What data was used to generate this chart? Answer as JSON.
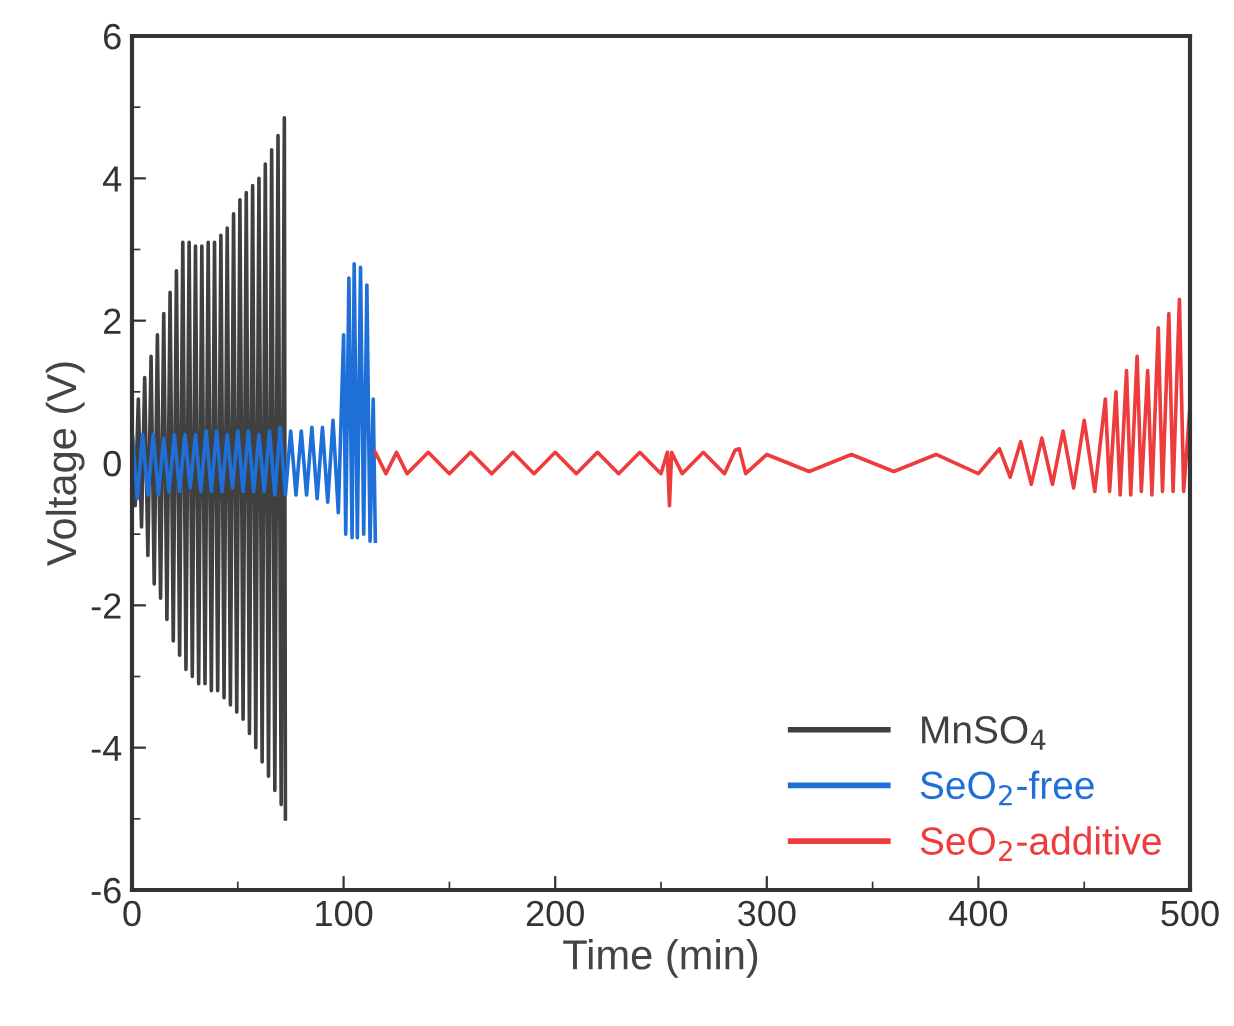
{
  "chart_data": {
    "type": "line",
    "xlabel": "Time (min)",
    "ylabel": "Voltage (V)",
    "xlim": [
      0,
      500
    ],
    "ylim": [
      -6,
      6
    ],
    "xticks": [
      0,
      100,
      200,
      300,
      400,
      500
    ],
    "yticks": [
      -6,
      -4,
      -2,
      0,
      2,
      4,
      6
    ],
    "grid": false,
    "legend": "bottom right",
    "marker": "none",
    "line_style": "solid",
    "series": [
      {
        "name": "MnSO$_{4}$",
        "color": "#404040",
        "x": [
          0,
          1.5,
          3,
          4.5,
          6,
          7.5,
          9,
          10.5,
          12,
          13.5,
          15,
          16.5,
          18,
          19.5,
          21,
          22.5,
          24,
          25.5,
          27,
          28.5,
          30,
          31.5,
          33,
          34.5,
          36,
          37.5,
          39,
          40.5,
          42,
          43.5,
          45,
          46.5,
          48,
          49.5,
          51,
          52.5,
          54,
          55.5,
          57,
          58.5,
          60,
          61.5,
          63,
          64.5,
          66,
          67.5,
          69,
          70.5,
          72,
          72.5
        ],
        "values": [
          0.5,
          -0.6,
          0.9,
          -0.9,
          1.2,
          -1.3,
          1.5,
          -1.7,
          1.8,
          -1.9,
          2.1,
          -2.2,
          2.4,
          -2.5,
          2.7,
          -2.7,
          3.1,
          -2.9,
          3.1,
          -3.0,
          3.05,
          -3.1,
          3.05,
          -3.1,
          3.1,
          -3.2,
          3.1,
          -3.2,
          3.2,
          -3.3,
          3.3,
          -3.4,
          3.5,
          -3.5,
          3.7,
          -3.6,
          3.8,
          -3.8,
          3.9,
          -4.0,
          4.0,
          -4.2,
          4.2,
          -4.4,
          4.4,
          -4.6,
          4.6,
          -4.8,
          4.85,
          -5.0
        ]
      },
      {
        "name": "SeO$_{2}$-free",
        "color": "#1f6fd8",
        "x": [
          0,
          2.5,
          5,
          7.5,
          10,
          12.5,
          15,
          17.5,
          20,
          22.5,
          25,
          27.5,
          30,
          32.5,
          35,
          37.5,
          40,
          42.5,
          45,
          47.5,
          50,
          52.5,
          55,
          57.5,
          60,
          62.5,
          65,
          67.5,
          70,
          72.5,
          75,
          77.5,
          80,
          82.5,
          85,
          87.5,
          90,
          92.5,
          95,
          97.5,
          100,
          101,
          102.5,
          104,
          105,
          106.5,
          108,
          109.5,
          111,
          112.5,
          114,
          115
        ],
        "values": [
          0.45,
          -0.5,
          0.4,
          -0.45,
          0.4,
          -0.45,
          0.35,
          -0.4,
          0.4,
          -0.4,
          0.4,
          -0.35,
          0.4,
          -0.4,
          0.45,
          -0.4,
          0.45,
          -0.4,
          0.4,
          -0.35,
          0.45,
          -0.4,
          0.45,
          -0.4,
          0.4,
          -0.4,
          0.45,
          -0.45,
          0.5,
          -0.45,
          0.45,
          -0.45,
          0.45,
          -0.45,
          0.5,
          -0.5,
          0.5,
          -0.55,
          0.6,
          -0.7,
          1.8,
          -1.0,
          2.6,
          -1.05,
          2.8,
          -1.05,
          2.75,
          -1.0,
          2.5,
          -1.1,
          0.9,
          -1.1
        ]
      },
      {
        "name": "SeO$_{2}$-additive",
        "color": "#ee3b3b",
        "x": [
          115,
          120,
          125,
          130,
          140,
          150,
          160,
          170,
          180,
          190,
          200,
          210,
          220,
          230,
          240,
          250,
          253,
          254,
          255,
          260,
          270,
          280,
          285,
          287,
          290,
          300,
          320,
          340,
          360,
          380,
          400,
          410,
          415,
          420,
          425,
          430,
          435,
          440,
          445,
          450,
          455,
          460,
          462,
          465,
          467,
          470,
          472,
          475,
          477,
          480,
          482,
          485,
          487,
          490,
          492,
          495,
          497,
          500
        ],
        "values": [
          0.15,
          -0.15,
          0.15,
          -0.15,
          0.15,
          -0.15,
          0.15,
          -0.15,
          0.15,
          -0.15,
          0.15,
          -0.15,
          0.15,
          -0.15,
          0.15,
          -0.15,
          0.15,
          -0.6,
          0.15,
          -0.15,
          0.15,
          -0.15,
          0.18,
          0.2,
          -0.15,
          0.12,
          -0.12,
          0.12,
          -0.12,
          0.12,
          -0.15,
          0.2,
          -0.2,
          0.3,
          -0.3,
          0.35,
          -0.3,
          0.45,
          -0.35,
          0.6,
          -0.4,
          0.9,
          -0.4,
          1.0,
          -0.45,
          1.3,
          -0.45,
          1.5,
          -0.4,
          1.3,
          -0.45,
          1.9,
          -0.4,
          2.1,
          -0.4,
          2.3,
          -0.4,
          0.8
        ]
      }
    ]
  }
}
